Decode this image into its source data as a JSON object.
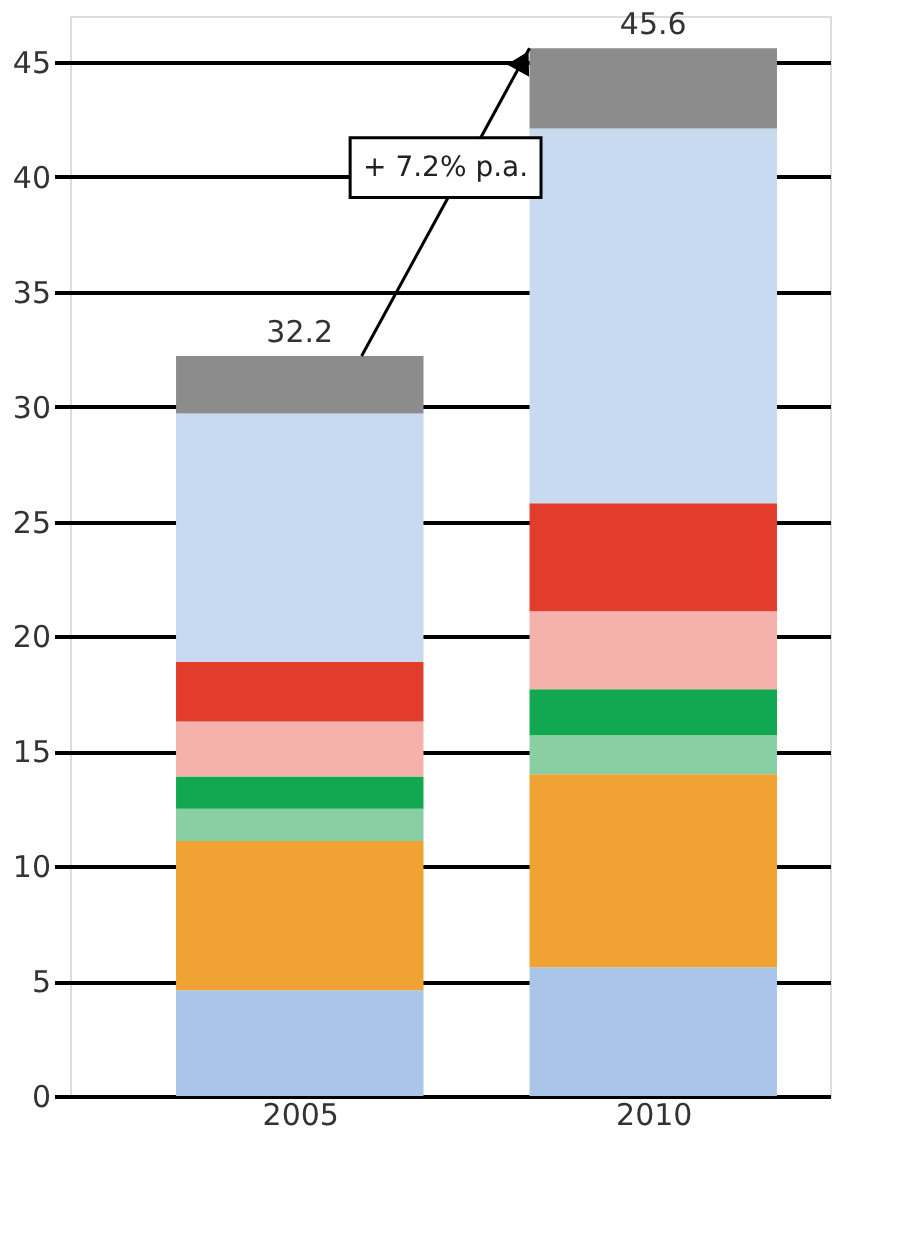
{
  "chart_data": {
    "type": "bar",
    "stacked": true,
    "categories": [
      "2005",
      "2010"
    ],
    "series": [
      {
        "color": "#a9c5e8",
        "values": [
          4.6,
          5.6
        ]
      },
      {
        "color": "#f0a232",
        "values": [
          6.5,
          8.4
        ]
      },
      {
        "color": "#8acfa4",
        "values": [
          1.4,
          1.7
        ]
      },
      {
        "color": "#12a852",
        "values": [
          1.4,
          2.0
        ]
      },
      {
        "color": "#f5b2ac",
        "values": [
          2.4,
          3.4
        ]
      },
      {
        "color": "#e23c2c",
        "values": [
          2.6,
          4.7
        ]
      },
      {
        "color": "#c8daf0",
        "values": [
          10.8,
          16.3
        ]
      },
      {
        "color": "#8c8c8c",
        "values": [
          2.5,
          3.5
        ]
      }
    ],
    "totals": [
      "32.2",
      "45.6"
    ],
    "annotations": [
      "+ 7.2% p.a."
    ],
    "ylim": [
      0,
      47
    ],
    "yticks": [
      0,
      5,
      10,
      15,
      20,
      25,
      30,
      35,
      40,
      45
    ],
    "grid": "y",
    "legend": false
  }
}
